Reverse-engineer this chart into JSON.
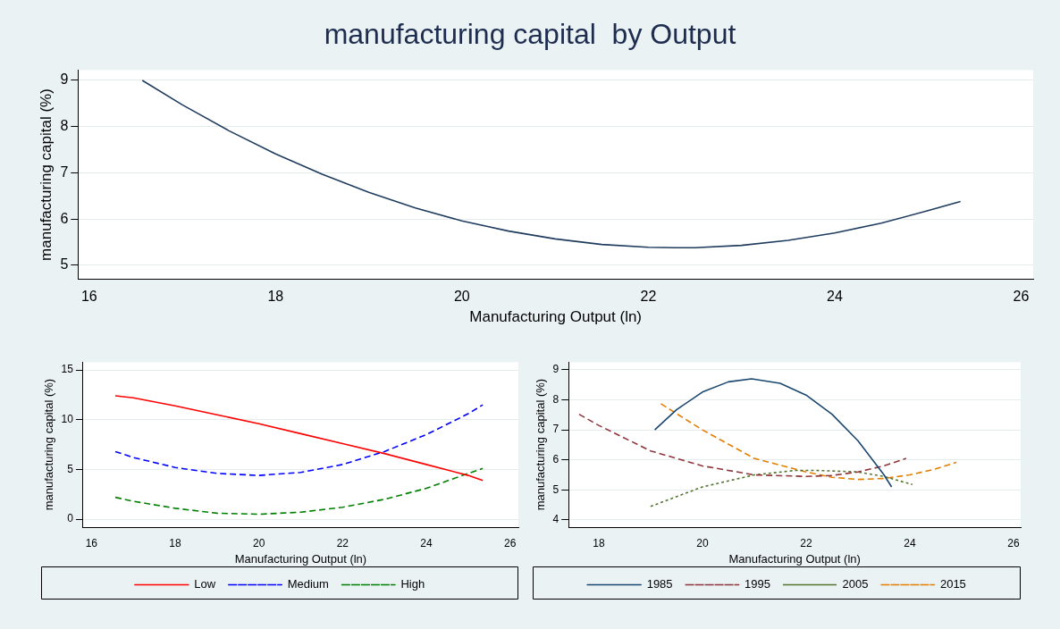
{
  "chart_data": [
    {
      "type": "line",
      "title": "manufacturing capital  by Output",
      "xlabel": "Manufacturing Output (ln)",
      "ylabel": "manufacturing capital (%)",
      "xlim": [
        15.88,
        26.13
      ],
      "ylim": [
        4.7,
        9.22
      ],
      "xticks": [
        16,
        18,
        20,
        22,
        24,
        26
      ],
      "yticks": [
        5,
        6,
        7,
        8,
        9
      ],
      "grid": "y",
      "marker": "none",
      "legend": false,
      "series": [
        {
          "color": "#1f3c5e",
          "line_style": "solid",
          "x": [
            16.57,
            17,
            17.5,
            18,
            18.5,
            19,
            19.5,
            20,
            20.5,
            21,
            21.5,
            22,
            22.3,
            22.5,
            23,
            23.5,
            24,
            24.5,
            25,
            25.35
          ],
          "values": [
            9.0,
            8.47,
            7.91,
            7.41,
            6.97,
            6.58,
            6.24,
            5.96,
            5.74,
            5.57,
            5.45,
            5.39,
            5.38,
            5.38,
            5.43,
            5.54,
            5.7,
            5.91,
            6.18,
            6.38
          ]
        }
      ]
    },
    {
      "type": "line",
      "xlabel": "Manufacturing Output (ln)",
      "ylabel": "manufacturing capital (%)",
      "xlim": [
        15.8,
        26.2
      ],
      "ylim": [
        -0.8,
        15.8
      ],
      "xticks": [
        16,
        18,
        20,
        22,
        24,
        26
      ],
      "yticks": [
        0,
        5,
        10,
        15
      ],
      "grid": "y",
      "marker": "none",
      "legend": "bottom",
      "series": [
        {
          "name": "Low",
          "color": "#ff0000",
          "line_style": "solid",
          "x": [
            16.57,
            17,
            18,
            19,
            20,
            21,
            22,
            23,
            24,
            25,
            25.35
          ],
          "values": [
            12.4,
            12.2,
            11.4,
            10.5,
            9.6,
            8.6,
            7.6,
            6.6,
            5.5,
            4.4,
            3.9
          ]
        },
        {
          "name": "Medium",
          "color": "#0000ff",
          "line_style": "dashed",
          "x": [
            16.57,
            17,
            18,
            19,
            20,
            21,
            22,
            23,
            24,
            25,
            25.35
          ],
          "values": [
            6.8,
            6.2,
            5.2,
            4.6,
            4.4,
            4.7,
            5.5,
            6.8,
            8.5,
            10.6,
            11.5
          ]
        },
        {
          "name": "High",
          "color": "#008000",
          "line_style": "dashed",
          "x": [
            16.57,
            17,
            18,
            19,
            20,
            21,
            22,
            23,
            24,
            25,
            25.35
          ],
          "values": [
            2.2,
            1.8,
            1.1,
            0.6,
            0.5,
            0.7,
            1.2,
            2.0,
            3.1,
            4.6,
            5.1
          ]
        }
      ]
    },
    {
      "type": "line",
      "xlabel": "Manufacturing Output (ln)",
      "ylabel": "manufacturing capital (%)",
      "xlim": [
        17.42,
        26.14
      ],
      "ylim": [
        3.76,
        9.26
      ],
      "xticks": [
        18,
        20,
        22,
        24,
        26
      ],
      "yticks": [
        4,
        5,
        6,
        7,
        8,
        9
      ],
      "grid": "y",
      "marker": "none",
      "legend": "bottom",
      "series": [
        {
          "name": "1985",
          "color": "#1a476f",
          "line_style": "solid",
          "x": [
            19.08,
            19.5,
            20,
            20.5,
            20.95,
            21.5,
            22,
            22.5,
            23,
            23.5,
            23.65
          ],
          "values": [
            7.0,
            7.67,
            8.26,
            8.6,
            8.7,
            8.55,
            8.16,
            7.52,
            6.64,
            5.51,
            5.1
          ]
        },
        {
          "name": "1995",
          "color": "#90353b",
          "line_style": "dashed",
          "x": [
            17.62,
            18,
            19,
            20,
            21,
            22,
            22.5,
            23,
            23.5,
            23.93
          ],
          "values": [
            7.52,
            7.15,
            6.3,
            5.8,
            5.5,
            5.45,
            5.48,
            5.6,
            5.8,
            6.05
          ]
        },
        {
          "name": "2005",
          "color": "#55752f",
          "line_style": "dotted",
          "x": [
            19.0,
            20,
            21,
            21.8,
            22.2,
            23,
            23.5,
            24.05
          ],
          "values": [
            4.45,
            5.1,
            5.5,
            5.65,
            5.65,
            5.6,
            5.45,
            5.18
          ]
        },
        {
          "name": "2015",
          "color": "#e37e00",
          "line_style": "dashed",
          "x": [
            19.2,
            20,
            21,
            22,
            22.5,
            23,
            23.5,
            24,
            24.5,
            24.9
          ],
          "values": [
            7.87,
            7.0,
            6.05,
            5.6,
            5.42,
            5.35,
            5.38,
            5.5,
            5.7,
            5.92
          ]
        }
      ]
    }
  ]
}
